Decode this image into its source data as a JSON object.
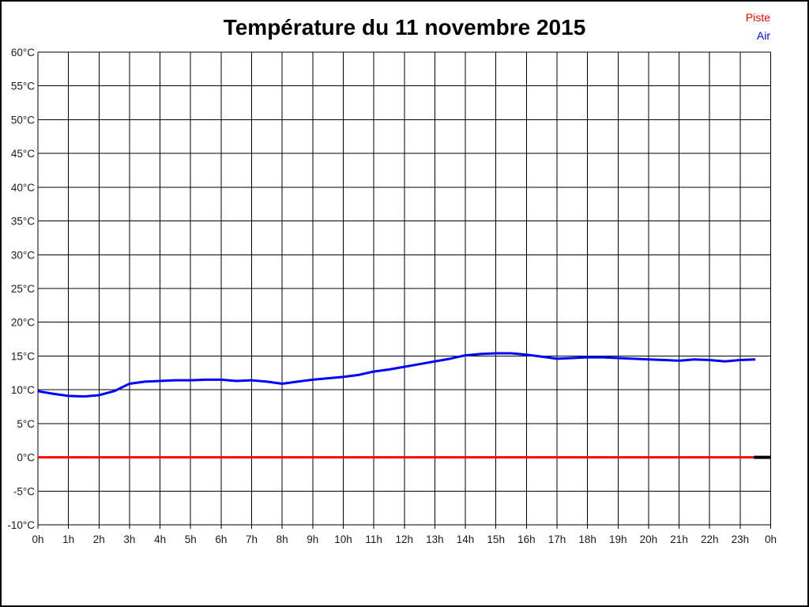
{
  "title": "Température du 11 novembre 2015",
  "legend": {
    "piste_label": "Piste",
    "air_label": "Air"
  },
  "colors": {
    "piste": "#ff0000",
    "air": "#0000ff",
    "grid": "#000000",
    "tick_text": "#1a1a1a",
    "end_segment": "#000000",
    "background": "#ffffff",
    "border": "#000000"
  },
  "chart_data": {
    "type": "line",
    "title": "Température du 11 novembre 2015",
    "xlabel": "",
    "ylabel": "",
    "x_unit": "hour",
    "xlim": [
      0,
      24
    ],
    "ylim": [
      -10,
      60
    ],
    "x_tick_step": 1,
    "y_tick_step": 5,
    "grid": true,
    "legend_position": "top-right",
    "x_tick_labels": [
      "0h",
      "1h",
      "2h",
      "3h",
      "4h",
      "5h",
      "6h",
      "7h",
      "8h",
      "9h",
      "10h",
      "11h",
      "12h",
      "13h",
      "14h",
      "15h",
      "16h",
      "17h",
      "18h",
      "19h",
      "20h",
      "21h",
      "22h",
      "23h",
      "0h"
    ],
    "y_tick_labels": [
      "60°C",
      "55°C",
      "50°C",
      "45°C",
      "40°C",
      "35°C",
      "30°C",
      "25°C",
      "20°C",
      "15°C",
      "10°C",
      "5°C",
      "0°C",
      "-5°C",
      "-10°C"
    ],
    "series": [
      {
        "name": "Piste",
        "color": "#ff0000",
        "line_width": 3,
        "x": [
          0,
          23.45
        ],
        "values": [
          0.0,
          0.0
        ]
      },
      {
        "name": "Air",
        "color": "#0000ff",
        "line_width": 3,
        "x": [
          0,
          0.5,
          1,
          1.5,
          2,
          2.5,
          3,
          3.5,
          4,
          4.5,
          5,
          5.5,
          6,
          6.5,
          7,
          7.5,
          8,
          8.5,
          9,
          9.5,
          10,
          10.5,
          11,
          11.5,
          12,
          12.5,
          13,
          13.5,
          14,
          14.5,
          15,
          15.5,
          16,
          16.5,
          17,
          17.5,
          18,
          18.5,
          19,
          19.5,
          20,
          20.5,
          21,
          21.5,
          22,
          22.5,
          23,
          23.5
        ],
        "values": [
          9.8,
          9.4,
          9.1,
          9.0,
          9.2,
          9.8,
          10.9,
          11.2,
          11.3,
          11.4,
          11.4,
          11.5,
          11.5,
          11.3,
          11.4,
          11.2,
          10.9,
          11.2,
          11.5,
          11.7,
          11.9,
          12.2,
          12.7,
          13.0,
          13.4,
          13.8,
          14.2,
          14.6,
          15.1,
          15.3,
          15.4,
          15.4,
          15.2,
          14.9,
          14.6,
          14.7,
          14.8,
          14.8,
          14.7,
          14.6,
          14.5,
          14.4,
          14.3,
          14.5,
          14.4,
          14.2,
          14.4,
          14.5
        ]
      }
    ],
    "extra_segments": [
      {
        "name": "axis-end-segment",
        "color": "#000000",
        "line_width": 4,
        "x": [
          23.45,
          24
        ],
        "values": [
          0.0,
          0.0
        ]
      }
    ]
  }
}
